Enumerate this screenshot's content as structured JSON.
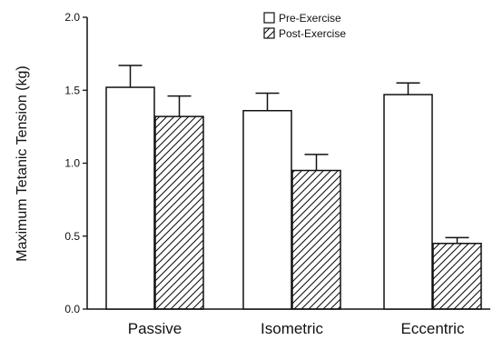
{
  "chart_data": {
    "type": "bar",
    "title": "",
    "xlabel": "",
    "ylabel": "Maximum Tetanic Tension (kg)",
    "ylim": [
      0.0,
      2.0
    ],
    "yticks": [
      "0.0",
      "0.5",
      "1.0",
      "1.5",
      "2.0"
    ],
    "ytick_values": [
      0.0,
      0.5,
      1.0,
      1.5,
      2.0
    ],
    "categories": [
      "Passive",
      "Isometric",
      "Eccentric"
    ],
    "series": [
      {
        "name": "Pre-Exercise",
        "fill": "open",
        "values": [
          1.52,
          1.36,
          1.47
        ],
        "errors": [
          0.15,
          0.12,
          0.08
        ]
      },
      {
        "name": "Post-Exercise",
        "fill": "hatched",
        "values": [
          1.32,
          0.95,
          0.45
        ],
        "errors": [
          0.14,
          0.11,
          0.04
        ]
      }
    ],
    "error_bars": "upper only",
    "legend_position": "top-right",
    "grid": false,
    "colors": {
      "stroke": "#111111",
      "background": "#ffffff"
    }
  }
}
